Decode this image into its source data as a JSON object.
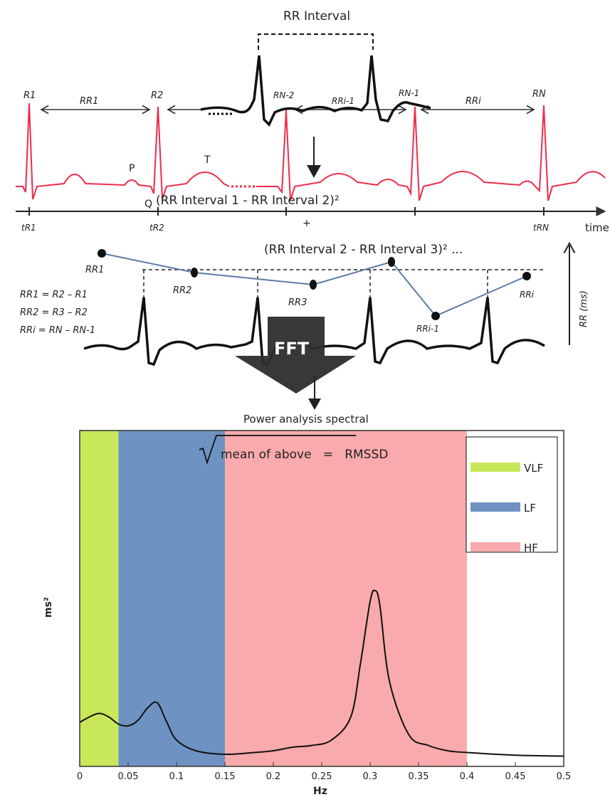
{
  "top": {
    "rr_interval_title": "RR Interval",
    "r_labels": [
      "R1",
      "R2",
      "RN-2",
      "RN-1",
      "RN"
    ],
    "rr_labels": [
      "RR1",
      "RRi-1",
      "RRi"
    ],
    "wave_labels": {
      "p": "P",
      "t": "T",
      "q": "Q"
    },
    "time_ticks": [
      "tR1",
      "tR2",
      "tRN"
    ],
    "time_axis_label": "time",
    "formula_line1": "(RR Interval 1 - RR Interval 2)²",
    "plus": "+",
    "formula_line2": "(RR Interval 2 - RR Interval 3)² ...",
    "tachogram_labels": [
      "RR1",
      "RR2",
      "RR3",
      "RRi-1",
      "RRi"
    ],
    "equations": [
      "RR1 = R2 – R1",
      "RR2 = R3 – R2",
      "RRi = RN – RN-1"
    ],
    "rr_axis_label": "RR (ms)",
    "fft_label": "FFT",
    "rmssd_text": "mean of above   =   RMSSD"
  },
  "chart_data": {
    "type": "line",
    "title": "Power analysis spectral",
    "xlabel": "Hz",
    "ylabel": "ms²",
    "xlim": [
      0,
      0.5
    ],
    "x_ticks": [
      "0",
      "0.05",
      "0.1",
      "0.15",
      "0.2",
      "0.25",
      "0.3",
      "0.35",
      "0.4",
      "0.45",
      "0.5"
    ],
    "bands": [
      {
        "name": "VLF",
        "from": 0,
        "to": 0.04,
        "color": "#c8e85a"
      },
      {
        "name": "LF",
        "from": 0.04,
        "to": 0.15,
        "color": "#6e93c2"
      },
      {
        "name": "HF",
        "from": 0.15,
        "to": 0.4,
        "color": "#f9aaad"
      }
    ],
    "legend_position": "top-right",
    "series": [
      {
        "x": [
          0,
          0.01,
          0.02,
          0.03,
          0.04,
          0.05,
          0.06,
          0.07,
          0.08,
          0.09,
          0.1,
          0.12,
          0.15,
          0.18,
          0.2,
          0.22,
          0.24,
          0.26,
          0.28,
          0.29,
          0.3,
          0.305,
          0.31,
          0.32,
          0.34,
          0.36,
          0.38,
          0.4,
          0.45,
          0.5
        ],
        "y": [
          0.22,
          0.25,
          0.27,
          0.25,
          0.21,
          0.2,
          0.23,
          0.3,
          0.33,
          0.22,
          0.12,
          0.06,
          0.04,
          0.05,
          0.06,
          0.08,
          0.09,
          0.12,
          0.25,
          0.55,
          0.9,
          0.96,
          0.88,
          0.45,
          0.15,
          0.09,
          0.06,
          0.05,
          0.035,
          0.03
        ]
      }
    ]
  }
}
